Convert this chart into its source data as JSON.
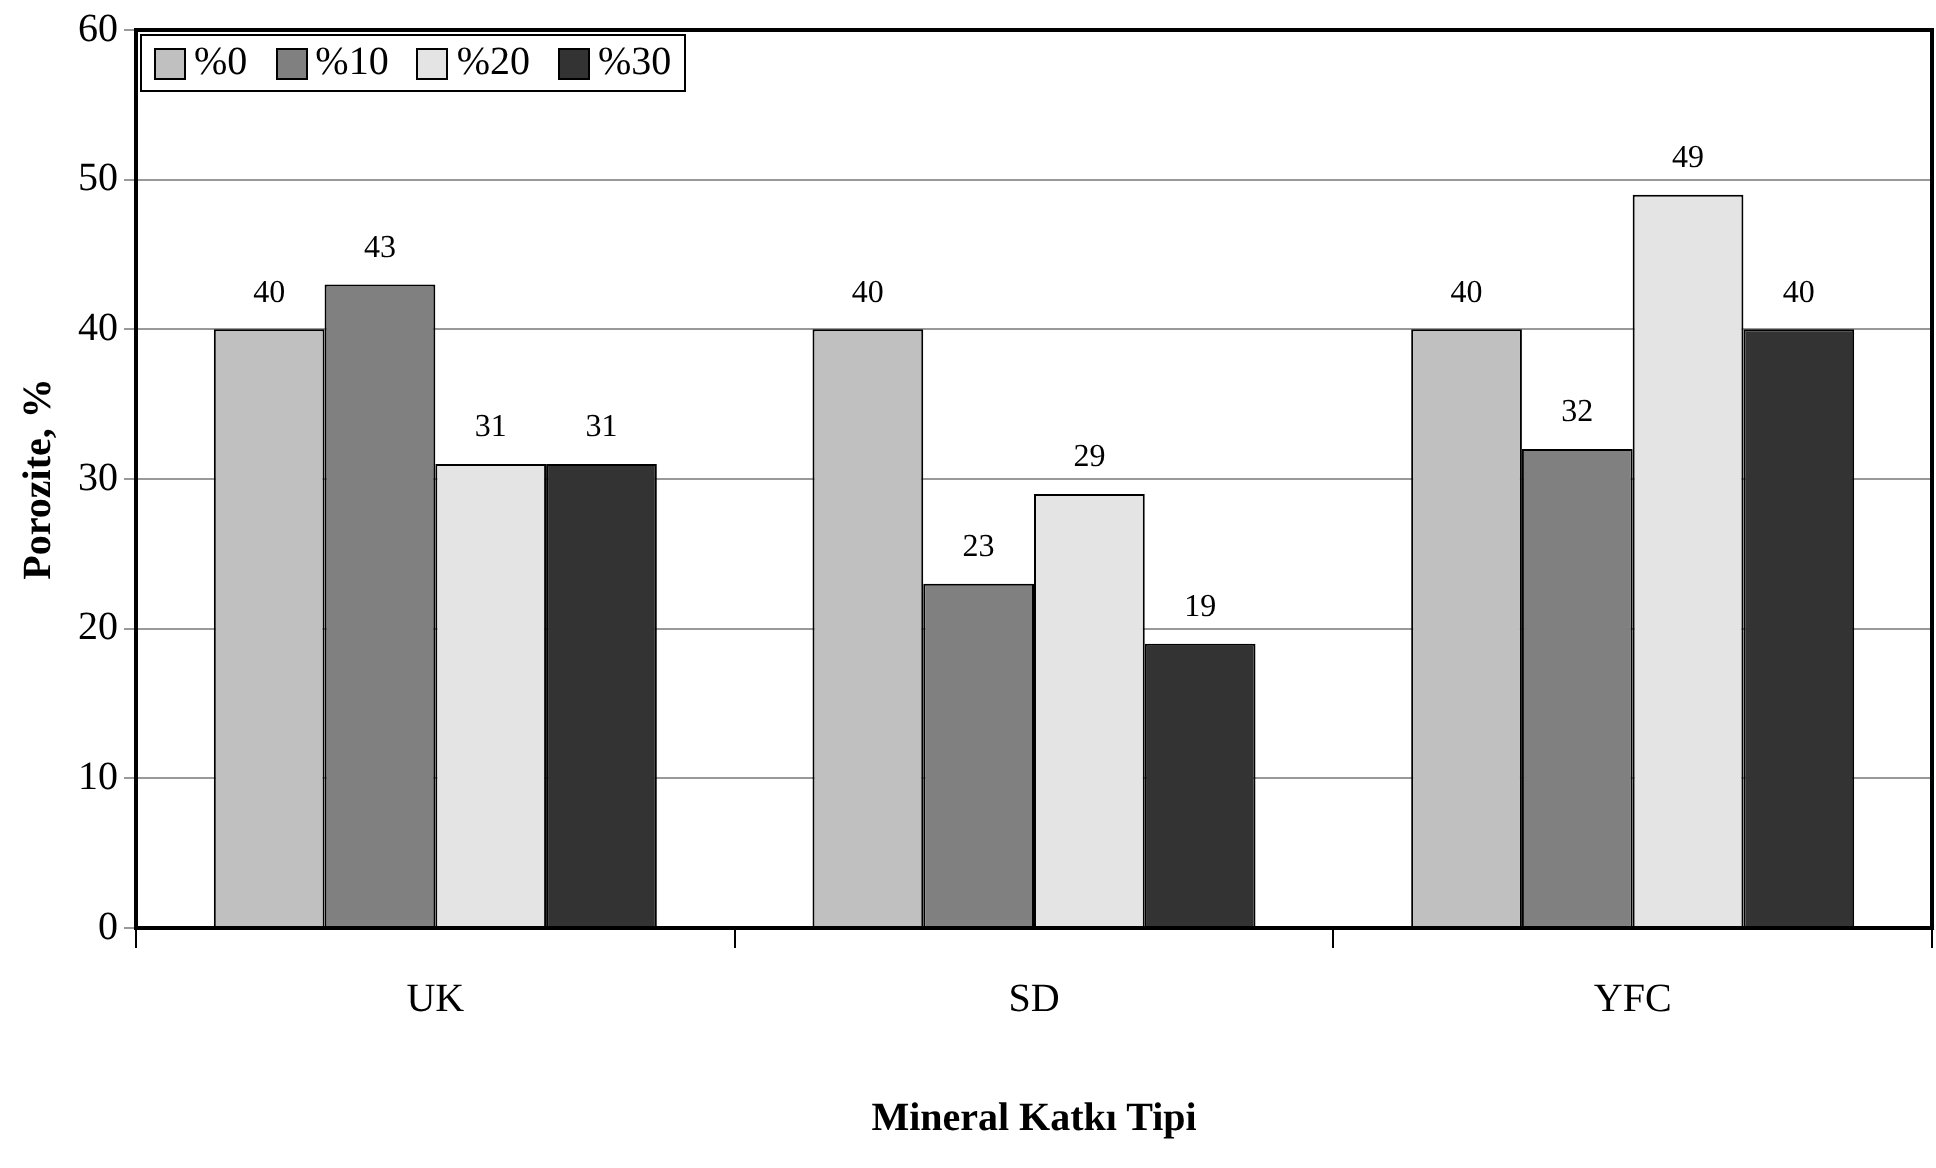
{
  "chart_data": {
    "type": "bar",
    "xlabel": "Mineral Katkı Tipi",
    "ylabel": "Porozite, %",
    "categories": [
      "UK",
      "SD",
      "YFC"
    ],
    "series": [
      {
        "name": "%0",
        "color": "#c0c0c0",
        "values": [
          40,
          40,
          40
        ]
      },
      {
        "name": "%10",
        "color": "#808080",
        "values": [
          43,
          23,
          32
        ]
      },
      {
        "name": "%20",
        "color": "#e4e4e4",
        "values": [
          31,
          29,
          49
        ]
      },
      {
        "name": "%30",
        "color": "#333333",
        "values": [
          31,
          19,
          40
        ]
      }
    ],
    "ylim": [
      0,
      60
    ],
    "yticks": [
      0,
      10,
      20,
      30,
      40,
      50,
      60
    ],
    "grid": "y",
    "legend": "top left",
    "data_labels": true
  }
}
